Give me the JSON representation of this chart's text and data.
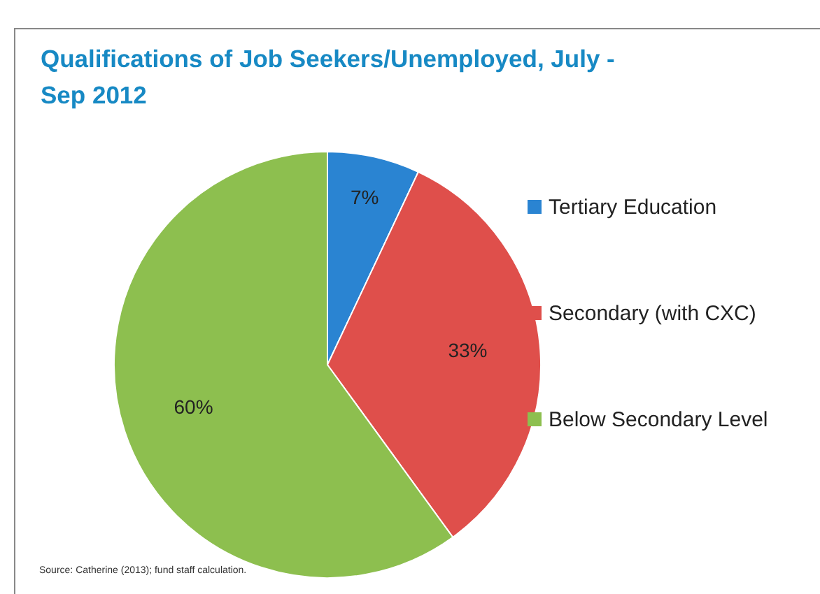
{
  "chart_data": {
    "type": "pie",
    "title": "Qualifications of Job Seekers/Unemployed, July - Sep 2012",
    "categories": [
      "Tertiary Education",
      "Secondary (with CXC)",
      "Below Secondary Level"
    ],
    "values": [
      7,
      33,
      60
    ],
    "colors": [
      "#2a84d2",
      "#df4f4b",
      "#8dbf4f"
    ],
    "value_labels": [
      "7%",
      "33%",
      "60%"
    ],
    "legend": "right",
    "annotations": [
      "Source: Catherine (2013); fund staff calculation."
    ]
  }
}
